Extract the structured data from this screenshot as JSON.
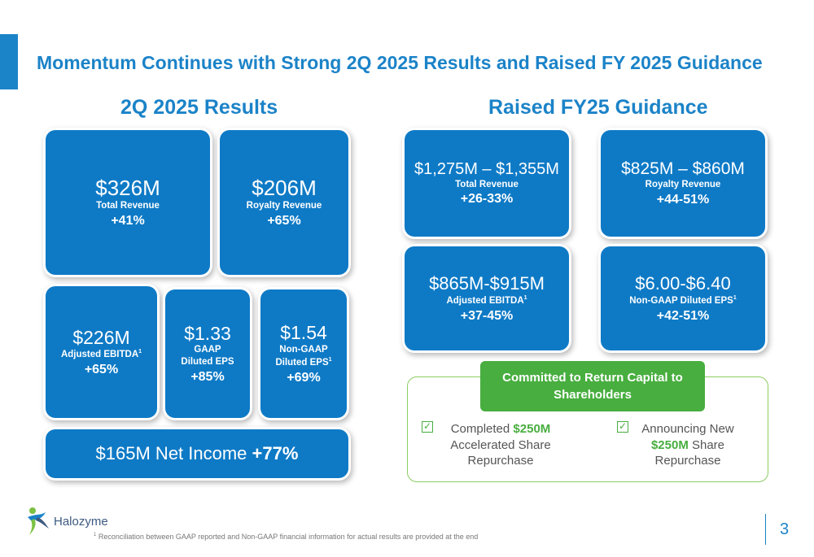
{
  "header": {
    "title": "Momentum Continues with Strong 2Q 2025 Results and Raised FY 2025 Guidance"
  },
  "results": {
    "title": "2Q 2025 Results",
    "total_revenue": {
      "value": "$326M",
      "label": "Total Revenue",
      "pct": "+41%"
    },
    "royalty_revenue": {
      "value": "$206M",
      "label": "Royalty Revenue",
      "pct": "+65%"
    },
    "adj_ebitda": {
      "value": "$226M",
      "label": "Adjusted EBITDA",
      "sup": "1",
      "pct": "+65%"
    },
    "gaap_eps": {
      "value": "$1.33",
      "label1": "GAAP",
      "label2": "Diluted EPS",
      "pct": "+85%"
    },
    "nongaap_eps": {
      "value": "$1.54",
      "label1": "Non-GAAP",
      "label2": "Diluted EPS",
      "sup": "1",
      "pct": "+69%"
    },
    "net_income": {
      "text": "$165M Net Income",
      "pct": "+77%"
    }
  },
  "guidance": {
    "title": "Raised FY25 Guidance",
    "total_revenue": {
      "value": "$1,275M – $1,355M",
      "label": "Total Revenue",
      "pct": "+26-33%"
    },
    "royalty_revenue": {
      "value": "$825M – $860M",
      "label": "Royalty Revenue",
      "pct": "+44-51%"
    },
    "adj_ebitda": {
      "value": "$865M-$915M",
      "label": "Adjusted EBITDA",
      "sup": "1",
      "pct": "+37-45%"
    },
    "nongaap_eps": {
      "value": "$6.00-$6.40",
      "label": "Non-GAAP Diluted EPS",
      "sup": "1",
      "pct": "+42-51%"
    }
  },
  "capital": {
    "header": "Committed to Return Capital to Shareholders",
    "item1": {
      "prefix": "Completed ",
      "highlight": "$250M",
      "rest1": "Accelerated Share",
      "rest2": "Repurchase"
    },
    "item2": {
      "line1": "Announcing New",
      "highlight": "$250M",
      "suffix": " Share",
      "line3": "Repurchase"
    },
    "colors": {
      "accent_green": "#48ae3f"
    }
  },
  "footer": {
    "logo": "Halozyme",
    "footnote_sup": "1",
    "footnote": " Reconciliation between GAAP reported and Non-GAAP financial information for actual results are provided at the end",
    "page_number": "3"
  },
  "colors": {
    "brand_blue": "#1b83c8",
    "tile_blue": "#0e7ac6"
  }
}
